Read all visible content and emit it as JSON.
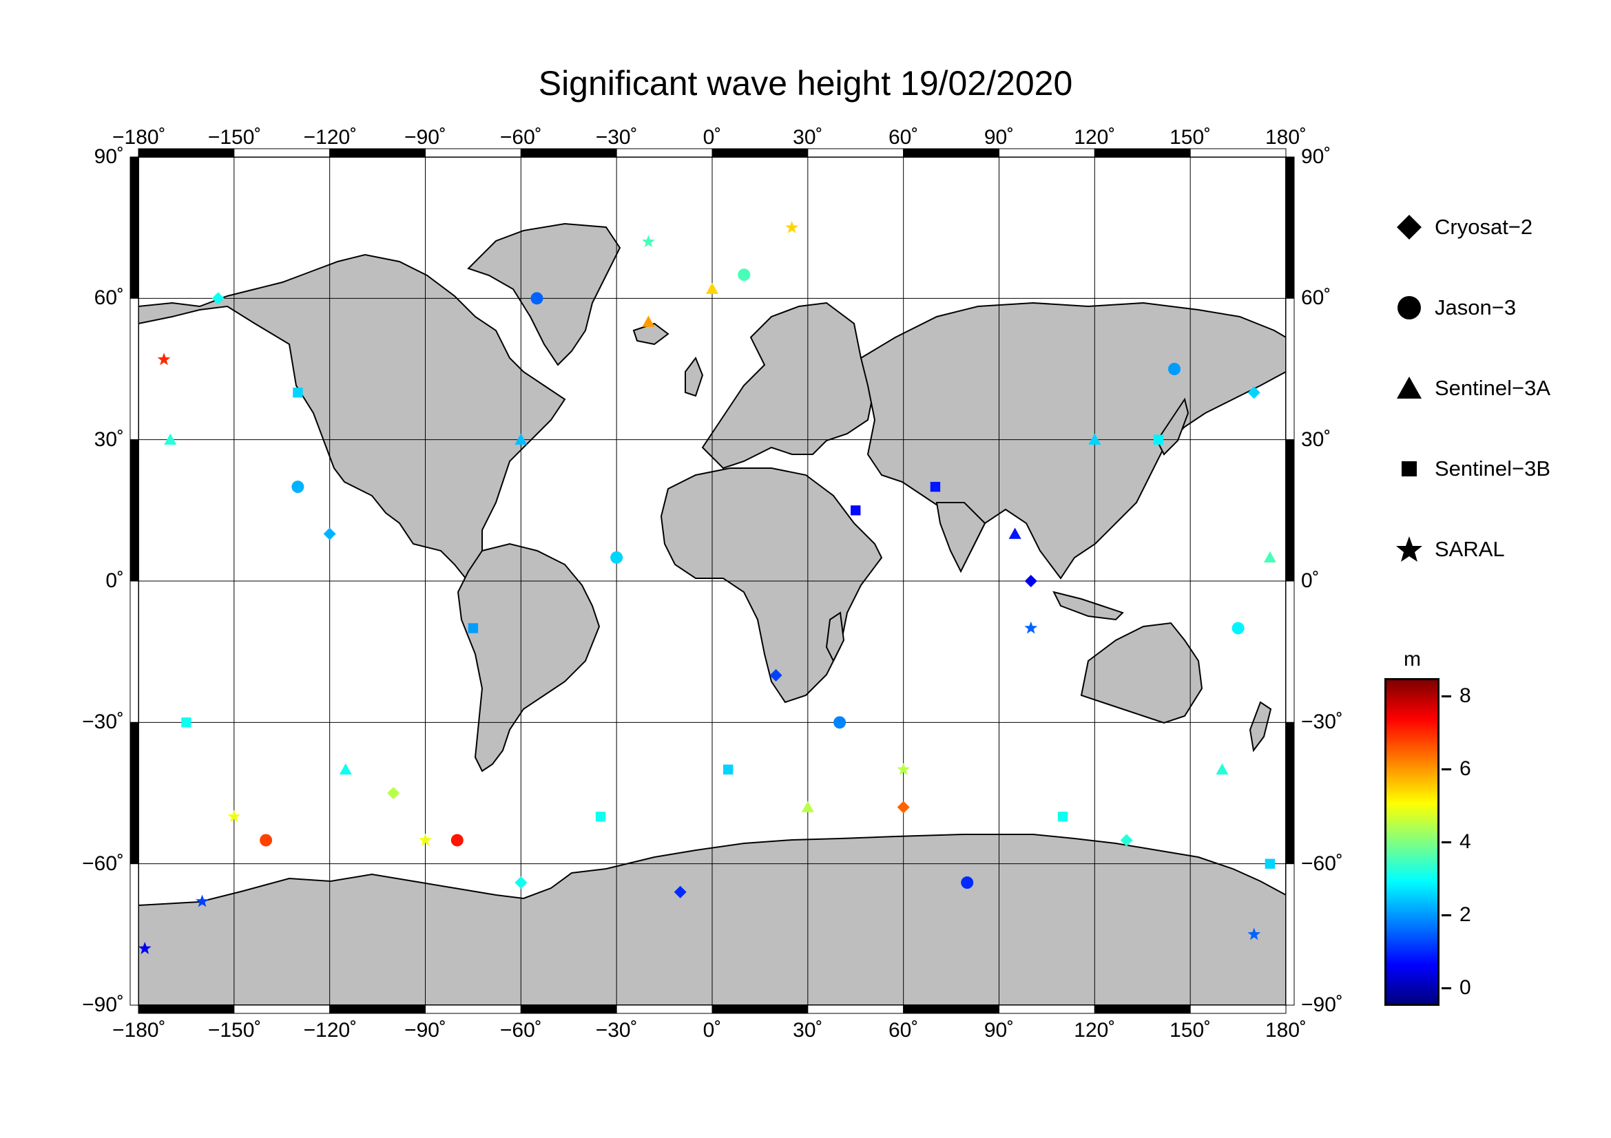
{
  "title": "Significant wave height 19/02/2020",
  "map": {
    "projection": "plate-carree",
    "lon_range": [
      -180,
      180
    ],
    "lat_range": [
      -90,
      90
    ],
    "grid_lon": [
      -150,
      -120,
      -90,
      -60,
      -30,
      0,
      30,
      60,
      90,
      120,
      150
    ],
    "grid_lat": [
      -60,
      -30,
      0,
      30,
      60
    ],
    "lon_tick_labels": [
      "−180˚",
      "−150˚",
      "−120˚",
      "−90˚",
      "−60˚",
      "−30˚",
      "0˚",
      "30˚",
      "60˚",
      "90˚",
      "120˚",
      "150˚",
      "180˚"
    ],
    "lat_tick_labels": [
      "90˚",
      "60˚",
      "30˚",
      "0˚",
      "−30˚",
      "−60˚",
      "−90˚"
    ],
    "land_color": "#bebebe",
    "ocean_color": "#ffffff"
  },
  "legend": {
    "entries": [
      {
        "label": "Cryosat−2",
        "symbol": "diamond"
      },
      {
        "label": "Jason−3",
        "symbol": "circle"
      },
      {
        "label": "Sentinel−3A",
        "symbol": "triangle"
      },
      {
        "label": "Sentinel−3B",
        "symbol": "square"
      },
      {
        "label": "SARAL",
        "symbol": "star"
      }
    ]
  },
  "colorbar": {
    "unit": "m",
    "range": [
      -0.5,
      8.5
    ],
    "ticks": [
      "8",
      "6",
      "4",
      "2",
      "0"
    ],
    "tick_values": [
      8,
      6,
      4,
      2,
      0
    ],
    "colormap": "jet"
  },
  "chart_data": {
    "type": "scatter",
    "title": "Significant wave height 19/02/2020",
    "xlabel": "",
    "ylabel": "",
    "xlim": [
      -180,
      180
    ],
    "ylim": [
      -90,
      90
    ],
    "value_unit": "m",
    "series": [
      {
        "name": "Cryosat−2",
        "points": [
          [
            -155,
            60,
            3.0
          ],
          [
            -120,
            10,
            2.2
          ],
          [
            -100,
            -45,
            4.5
          ],
          [
            -60,
            -64,
            3.0
          ],
          [
            -10,
            -66,
            1.0
          ],
          [
            20,
            -20,
            1.2
          ],
          [
            60,
            -48,
            6.5
          ],
          [
            100,
            0,
            0.5
          ],
          [
            130,
            -55,
            3.2
          ],
          [
            170,
            40,
            2.5
          ]
        ]
      },
      {
        "name": "Jason−3",
        "points": [
          [
            -140,
            -55,
            6.8
          ],
          [
            -130,
            20,
            2.2
          ],
          [
            -80,
            -55,
            7.2
          ],
          [
            -55,
            60,
            1.5
          ],
          [
            -30,
            5,
            2.5
          ],
          [
            10,
            65,
            3.5
          ],
          [
            40,
            -30,
            1.8
          ],
          [
            80,
            -64,
            1.0
          ],
          [
            145,
            45,
            2.0
          ],
          [
            165,
            -10,
            2.8
          ]
        ]
      },
      {
        "name": "Sentinel−3A",
        "points": [
          [
            -170,
            30,
            3.2
          ],
          [
            -115,
            -40,
            3.0
          ],
          [
            -60,
            30,
            2.3
          ],
          [
            -20,
            55,
            6.0
          ],
          [
            0,
            62,
            5.5
          ],
          [
            30,
            -48,
            4.5
          ],
          [
            95,
            10,
            0.8
          ],
          [
            120,
            30,
            2.5
          ],
          [
            160,
            -40,
            3.2
          ],
          [
            175,
            5,
            3.5
          ]
        ]
      },
      {
        "name": "Sentinel−3B",
        "points": [
          [
            -165,
            -30,
            3.0
          ],
          [
            -130,
            40,
            2.5
          ],
          [
            -75,
            -10,
            2.0
          ],
          [
            -35,
            -50,
            3.0
          ],
          [
            5,
            -40,
            2.5
          ],
          [
            45,
            15,
            0.7
          ],
          [
            70,
            20,
            0.8
          ],
          [
            110,
            -50,
            3.0
          ],
          [
            140,
            30,
            2.8
          ],
          [
            175,
            -60,
            2.5
          ]
        ]
      },
      {
        "name": "SARAL",
        "points": [
          [
            -172,
            47,
            7.0
          ],
          [
            -178,
            -78,
            0.5
          ],
          [
            -160,
            -68,
            1.2
          ],
          [
            -150,
            -50,
            5.0
          ],
          [
            -90,
            -55,
            5.0
          ],
          [
            -20,
            72,
            3.5
          ],
          [
            25,
            75,
            5.5
          ],
          [
            60,
            -40,
            4.5
          ],
          [
            100,
            -10,
            1.5
          ],
          [
            170,
            -75,
            1.5
          ]
        ]
      }
    ]
  }
}
